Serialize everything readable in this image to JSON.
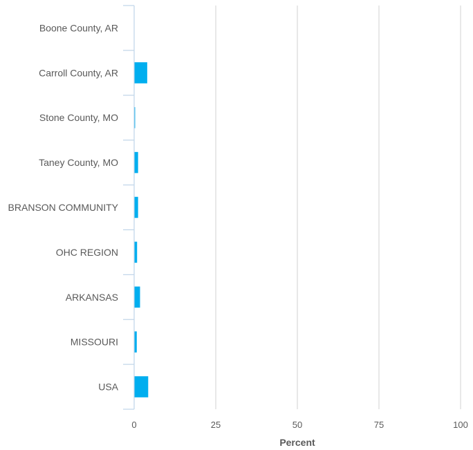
{
  "chart_data": {
    "type": "bar",
    "orientation": "horizontal",
    "categories": [
      "Boone County, AR",
      "Carroll County, AR",
      "Stone County, MO",
      "Taney County, MO",
      "BRANSON COMMUNITY",
      "OHC REGION",
      "ARKANSAS",
      "MISSOURI",
      "USA"
    ],
    "values": [
      0,
      4.0,
      0.3,
      1.2,
      1.2,
      0.9,
      1.8,
      0.8,
      4.3
    ],
    "xlabel": "Percent",
    "ylabel": "",
    "xlim": [
      0,
      100
    ],
    "x_ticks": [
      "0",
      "25",
      "50",
      "75",
      "100"
    ],
    "x_tick_values": [
      0,
      25,
      50,
      75,
      100
    ],
    "grid": true,
    "bar_color": "#00AEEF",
    "grid_color": "#D9D9D9",
    "axis_color": "#BFD4E8"
  }
}
